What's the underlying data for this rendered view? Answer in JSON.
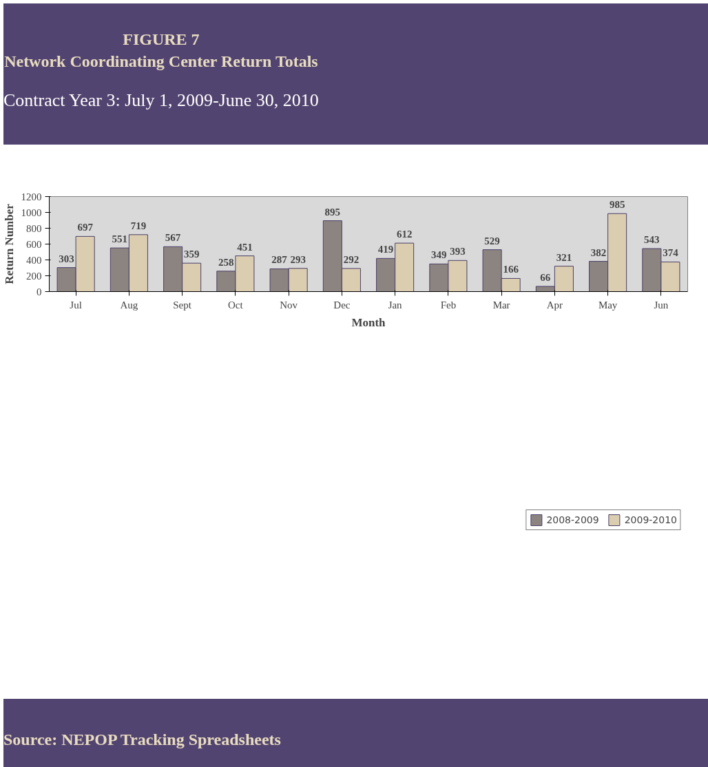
{
  "chart_data": {
    "type": "bar",
    "title": "FIGURE 7\nNetwork Coordinating Center Return Totals",
    "subtitle": "Contract Year 3: July 1, 2009-June 30, 2010",
    "xlabel": "Month",
    "ylabel": "Return Number",
    "categories": [
      "Jul",
      "Aug",
      "Sept",
      "Oct",
      "Nov",
      "Dec",
      "Jan",
      "Feb",
      "Mar",
      "Apr",
      "May",
      "Jun"
    ],
    "series": [
      {
        "name": "2008-2009",
        "color": "#8c8480",
        "values": [
          303,
          551,
          567,
          258,
          287,
          895,
          419,
          349,
          529,
          66,
          382,
          543
        ]
      },
      {
        "name": "2009-2010",
        "color": "#dacdb0",
        "values": [
          697,
          719,
          359,
          451,
          293,
          292,
          612,
          393,
          166,
          321,
          985,
          374
        ]
      }
    ],
    "ylim": [
      0,
      1200
    ],
    "yticks": [
      0,
      200,
      400,
      600,
      800,
      1000,
      1200
    ],
    "grid": false,
    "legend": "bottom",
    "data_labels": true,
    "annotations": [
      "Source: NEPOP Tracking Spreadsheets"
    ]
  }
}
